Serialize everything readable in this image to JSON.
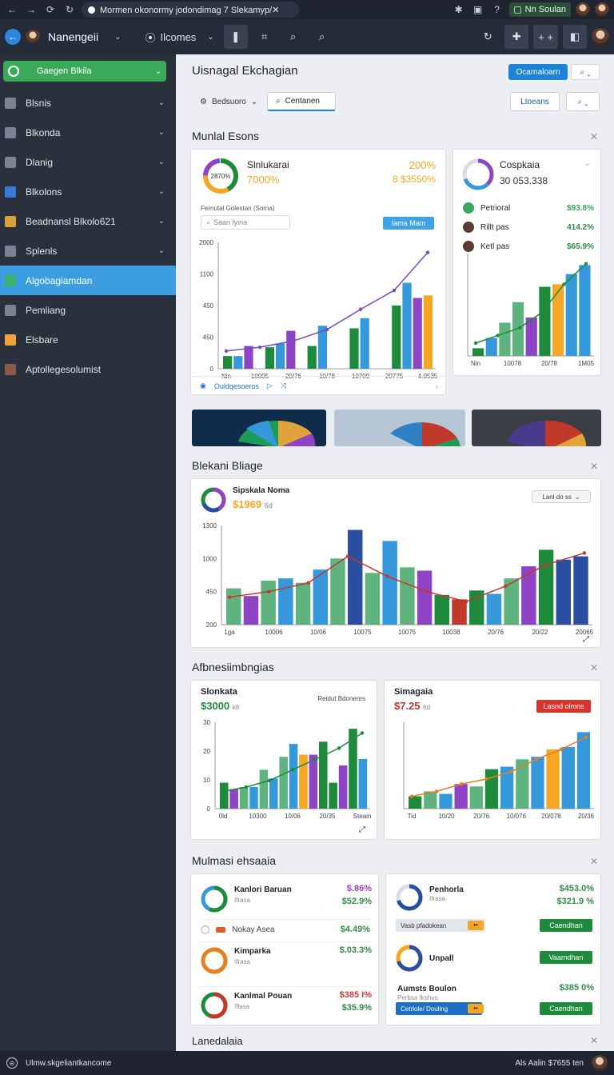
{
  "browser": {
    "url": "Mormen okonormy jodondimag 7 Slekamyp/✕",
    "extension": "Nn Soulan"
  },
  "header": {
    "brand": "Nanengeii",
    "menu": "Ilcomes"
  },
  "sidebar": {
    "top": "Gaegen Blkila",
    "items": [
      {
        "label": "Blsnis",
        "color": "#7b8494"
      },
      {
        "label": "Blkonda",
        "color": "#7b8494"
      },
      {
        "label": "Dlanig",
        "color": "#7b8494"
      },
      {
        "label": "Blkolons",
        "color": "#3b79d6"
      },
      {
        "label": "Beadnansl Blkolo621",
        "color": "#d9a136"
      },
      {
        "label": "Splenls",
        "color": "#7b8494"
      },
      {
        "label": "Algobagiamdan",
        "color": "#3fae6f",
        "active": true
      },
      {
        "label": "Pemliang",
        "color": "#7b8494"
      },
      {
        "label": "Elsbare",
        "color": "#f0a33a"
      },
      {
        "label": "Aptollegesolumist",
        "color": "#8a5b49"
      }
    ]
  },
  "page": {
    "title": "Uisnagal Ekchagian",
    "primary_button": "Ocarnaloarn",
    "tab1": "Bedsuoro",
    "tab2": "Centanen",
    "button2": "Ltoeans"
  },
  "sections": {
    "s1": "Munlal Esons",
    "s2": "Blekani Bliage",
    "s3": "Afbnesiimbngias",
    "s4": "Mulmasi ehsaaia",
    "s5": "Lanedalaia"
  },
  "card1": {
    "title": "Slnlukarai",
    "donut_label": "2870%",
    "value1": "7000%",
    "value2": "200%",
    "value3": "8 $3550%",
    "filter_title": "Fernutal Golestan (Sorna)",
    "search_placeholder": "Saan lyina",
    "button": "Iama Mam",
    "footer_link": "Ouldqesoeros"
  },
  "card2": {
    "title": "Cospkaia",
    "value": "30 053.338",
    "rows": [
      {
        "label": "Petrioral",
        "value": "$93.8%",
        "color": "#3ba55c"
      },
      {
        "label": "Rillt pas",
        "value": "414.2%",
        "color": "#2f8c4a"
      },
      {
        "label": "Ketl pas",
        "value": "$65.9%",
        "color": "#2f8c4a"
      }
    ]
  },
  "card3": {
    "title": "Sipskala Noma",
    "value": "$1969",
    "unit": "6d",
    "dropdown": "Lanl do ss"
  },
  "card4": {
    "title": "Slonkata",
    "value": "$3000",
    "unit": "k8",
    "caption": "Reidut Bdonenrs"
  },
  "card5": {
    "title": "Simagaia",
    "value": "$7.25",
    "unit": "6d",
    "button": "Lasnd olmns"
  },
  "card6": {
    "rows": [
      {
        "title": "Kanlori Baruan",
        "sub": "Ifrasa",
        "v1": "$.86%",
        "v2": "$52.9%",
        "c1": "#a33bc9",
        "c2": "#2f8c4a"
      },
      {
        "title": "Kimparka",
        "sub": "Ifrasa",
        "v1": "$.03.3%",
        "v2": "",
        "c1": "#2f8c4a",
        "c2": ""
      },
      {
        "title": "Kanlmal Pouan",
        "sub": "Iflasa",
        "v1": "$385 I%",
        "v2": "$35.9%",
        "c1": "#d23a3a",
        "c2": "#2f8c4a"
      }
    ],
    "tag": "Nokay Asea",
    "tag_value": "$4.49%"
  },
  "card7": {
    "rows": [
      {
        "title": "Penhorla",
        "sub": "Ifrasa",
        "v1": "$453.0%",
        "v2": "$321.9 %"
      },
      {
        "title": "Unpall",
        "sub": "",
        "v1": "",
        "v2": ""
      },
      {
        "title": "Aumsts Boulon",
        "sub": "Perbsa Ikshus",
        "v1": "$385 0%",
        "v2": ""
      }
    ],
    "chip1": "Vasb pfadokean",
    "chip2": "Cetrlole/ Douling",
    "btn1": "Caendhan",
    "btn2": "Vaamdhan",
    "btn3": "Caendhan"
  },
  "status": {
    "left": "Ulmw.skgeliantkancome",
    "right": "Als Aalin   $7655 ten"
  },
  "colors": {
    "green": "#1e8a3c",
    "purple": "#8e44c4",
    "blue": "#3498db",
    "teal": "#5fb37f",
    "orange": "#f5a623",
    "navy": "#2a4fa1",
    "red": "#c0392b",
    "accent": "#1c83d6"
  },
  "chart_data": [
    {
      "type": "bar",
      "title": "Slnlukarai",
      "x_ticks": [
        "Nin",
        "10005",
        "20/76",
        "10/78",
        "10709",
        "20775",
        "4.0535"
      ],
      "y_ticks": [
        "2000",
        "1100",
        "450",
        "450",
        "0"
      ],
      "series": [
        {
          "color": "#1e8a3c",
          "values": [
            100,
            170,
            180,
            320,
            500
          ]
        },
        {
          "color": "#3498db",
          "values": [
            100,
            200,
            340,
            400,
            680
          ]
        },
        {
          "color": "#8e44c4",
          "values": [
            180,
            300,
            0,
            0,
            560
          ]
        },
        {
          "color": "#f5a623",
          "values": [
            0,
            0,
            0,
            0,
            580
          ]
        }
      ],
      "line": [
        140,
        170,
        220,
        310,
        470,
        620,
        920
      ]
    },
    {
      "type": "bar",
      "title": "Cospkaia",
      "x_ticks": [
        "Nin",
        "10078",
        "20/78",
        "1M05"
      ],
      "values": [
        60,
        140,
        260,
        420,
        300,
        540,
        560,
        640,
        710
      ],
      "line": [
        100,
        160,
        220,
        340,
        560,
        720
      ]
    },
    {
      "type": "bar",
      "title": "Sipskala Noma",
      "x_ticks": [
        "1ga",
        "10006",
        "10/06",
        "10075",
        "10075",
        "10038",
        "20/76",
        "20/22",
        "20065"
      ],
      "y_ticks": [
        "1300",
        "1000",
        "450",
        "200"
      ],
      "values": [
        330,
        260,
        400,
        420,
        380,
        500,
        600,
        860,
        470,
        760,
        520,
        490,
        270,
        230,
        310,
        280,
        420,
        530,
        680,
        590,
        620
      ],
      "line": [
        250,
        300,
        380,
        620,
        440,
        300,
        210,
        350,
        540,
        650
      ]
    },
    {
      "type": "bar",
      "title": "Slonkata",
      "x_ticks": [
        "0ld",
        "10300",
        "10/06",
        "20/35",
        "Steain"
      ],
      "y_ticks": [
        "30",
        "20",
        "10",
        "0"
      ],
      "values": [
        12,
        9,
        10,
        10,
        18,
        14,
        24,
        30,
        25,
        25,
        31,
        12,
        20,
        37,
        23
      ],
      "line": [
        8,
        10,
        13,
        18,
        23,
        28,
        35
      ]
    },
    {
      "type": "bar",
      "title": "Simagaia",
      "x_ticks": [
        "Tid",
        "10/20",
        "20/76",
        "10/076",
        "20/078",
        "20/36"
      ],
      "values": [
        10,
        14,
        12,
        20,
        18,
        32,
        34,
        40,
        42,
        48,
        50,
        62
      ],
      "line": [
        10,
        14,
        20,
        24,
        30,
        40,
        48,
        58
      ]
    }
  ]
}
